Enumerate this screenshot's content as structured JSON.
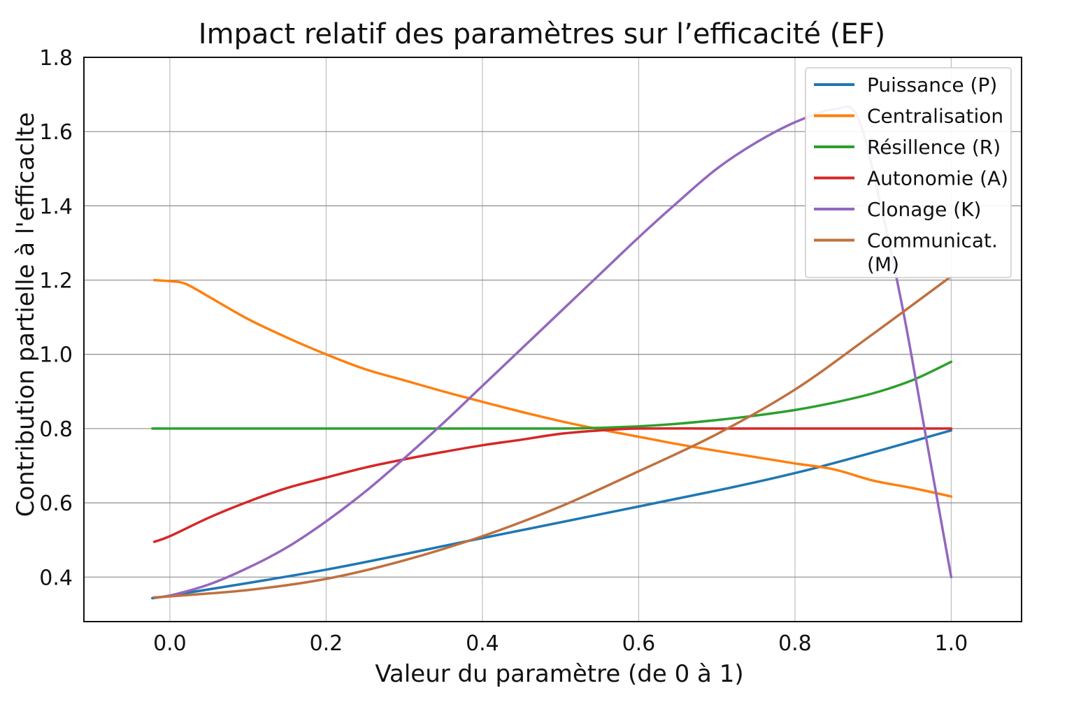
{
  "chart_data": {
    "type": "line",
    "title": "Impact relatif des paramètres sur l’efficacité (EF)",
    "xlabel": "Valeur du paramètre  (de 0 à 1)",
    "ylabel": "Contribution partielle à l'efficaclte",
    "xlim": [
      -0.11,
      1.09
    ],
    "ylim": [
      0.28,
      1.8
    ],
    "xticks": [
      0.0,
      0.2,
      0.4,
      0.6,
      0.8,
      1.0
    ],
    "xtick_labels": [
      "0.0",
      "0.2",
      "0.4",
      "0.6",
      "0.8",
      "1.0"
    ],
    "yticks": [
      0.4,
      0.6,
      0.8,
      1.0,
      1.2,
      1.4,
      1.6,
      1.8
    ],
    "ytick_labels": [
      "0.4",
      "0.6",
      "0.8",
      "1.0",
      "1.2",
      "1.4",
      "1.6",
      "1.8"
    ],
    "grid": true,
    "legend_position": "top-right",
    "series": [
      {
        "name": "Puissance (P)",
        "color": "#1f77b4",
        "x": [
          -0.02,
          0.0,
          0.2,
          0.4,
          0.6,
          0.8,
          1.0
        ],
        "y": [
          0.345,
          0.35,
          0.42,
          0.505,
          0.59,
          0.68,
          0.795
        ]
      },
      {
        "name": "Centralisation",
        "color": "#ff7f0e",
        "x": [
          -0.02,
          0.0,
          0.02,
          0.05,
          0.1,
          0.15,
          0.2,
          0.25,
          0.3,
          0.35,
          0.4,
          0.45,
          0.5,
          0.55,
          0.6,
          0.65,
          0.7,
          0.75,
          0.8,
          0.85,
          0.9,
          0.95,
          1.0
        ],
        "y": [
          1.2,
          1.197,
          1.19,
          1.155,
          1.095,
          1.045,
          1.0,
          0.96,
          0.93,
          0.9,
          0.872,
          0.845,
          0.82,
          0.798,
          0.778,
          0.758,
          0.74,
          0.723,
          0.706,
          0.69,
          0.66,
          0.64,
          0.617
        ]
      },
      {
        "name": "Résillence (R)",
        "color": "#2ca02c",
        "x": [
          -0.02,
          0.0,
          0.2,
          0.4,
          0.5,
          0.55,
          0.6,
          0.65,
          0.7,
          0.75,
          0.8,
          0.85,
          0.9,
          0.95,
          1.0
        ],
        "y": [
          0.8,
          0.8,
          0.8,
          0.8,
          0.8,
          0.802,
          0.806,
          0.813,
          0.823,
          0.835,
          0.85,
          0.87,
          0.895,
          0.93,
          0.98
        ]
      },
      {
        "name": "Autonomie (A)",
        "color": "#d62728",
        "x": [
          -0.02,
          0.0,
          0.05,
          0.1,
          0.15,
          0.2,
          0.25,
          0.3,
          0.35,
          0.4,
          0.45,
          0.5,
          0.55,
          0.6,
          0.7,
          0.8,
          0.9,
          1.0
        ],
        "y": [
          0.495,
          0.51,
          0.56,
          0.603,
          0.64,
          0.668,
          0.695,
          0.717,
          0.737,
          0.755,
          0.77,
          0.786,
          0.795,
          0.8,
          0.8,
          0.8,
          0.8,
          0.8
        ]
      },
      {
        "name": "Clonage (K)",
        "color": "#9467bd",
        "x": [
          -0.02,
          0.0,
          0.05,
          0.1,
          0.15,
          0.2,
          0.25,
          0.3,
          0.35,
          0.4,
          0.45,
          0.5,
          0.55,
          0.6,
          0.65,
          0.7,
          0.75,
          0.8,
          0.85,
          0.88,
          0.91,
          0.94,
          0.97,
          1.0
        ],
        "y": [
          0.345,
          0.35,
          0.38,
          0.425,
          0.48,
          0.55,
          0.63,
          0.72,
          0.815,
          0.915,
          1.015,
          1.115,
          1.215,
          1.315,
          1.41,
          1.5,
          1.57,
          1.625,
          1.66,
          1.64,
          1.4,
          1.1,
          0.75,
          0.4
        ]
      },
      {
        "name": "Communicat.\n(M)",
        "color": "#c0703f",
        "x": [
          -0.02,
          0.0,
          0.1,
          0.2,
          0.3,
          0.4,
          0.5,
          0.6,
          0.7,
          0.8,
          0.9,
          1.0
        ],
        "y": [
          0.345,
          0.348,
          0.365,
          0.395,
          0.445,
          0.51,
          0.59,
          0.685,
          0.785,
          0.905,
          1.055,
          1.21
        ]
      }
    ]
  }
}
